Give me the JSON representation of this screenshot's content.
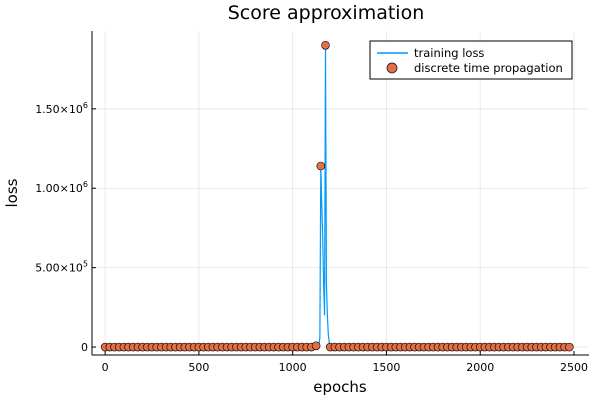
{
  "chart_data": {
    "type": "line",
    "title": "Score approximation",
    "xlabel": "epochs",
    "ylabel": "loss",
    "xlim": [
      -70,
      2580
    ],
    "ylim": [
      -50000,
      1990000
    ],
    "x_ticks": [
      0,
      500,
      1000,
      1500,
      2000,
      2500
    ],
    "x_tick_labels": [
      "0",
      "500",
      "1000",
      "1500",
      "2000",
      "2500"
    ],
    "y_ticks": [
      0,
      500000,
      1000000,
      1500000
    ],
    "y_tick_labels": [
      {
        "mantissa": "0",
        "exponent": ""
      },
      {
        "mantissa": "5.00×10",
        "exponent": "5"
      },
      {
        "mantissa": "1.00×10",
        "exponent": "6"
      },
      {
        "mantissa": "1.50×10",
        "exponent": "6"
      }
    ],
    "grid": true,
    "legend_position": "top-right",
    "series": [
      {
        "name": "training loss",
        "kind": "line",
        "color": "#009AFA",
        "x": [
          0,
          1125,
          1130,
          1135,
          1140,
          1145,
          1150,
          1155,
          1160,
          1165,
          1170,
          1175,
          1180,
          1185,
          1190,
          1195,
          1200,
          1210,
          2475
        ],
        "y": [
          0,
          0,
          1000,
          5000,
          15000,
          60000,
          1140000,
          900000,
          700000,
          400000,
          200000,
          1900000,
          400000,
          200000,
          80000,
          30000,
          0,
          0,
          0
        ]
      },
      {
        "name": "discrete time propagation",
        "kind": "scatter",
        "color": "#E26F46",
        "x": [
          0,
          25,
          50,
          75,
          100,
          125,
          150,
          175,
          200,
          225,
          250,
          275,
          300,
          325,
          350,
          375,
          400,
          425,
          450,
          475,
          500,
          525,
          550,
          575,
          600,
          625,
          650,
          675,
          700,
          725,
          750,
          775,
          800,
          825,
          850,
          875,
          900,
          925,
          950,
          975,
          1000,
          1025,
          1050,
          1075,
          1100,
          1125,
          1150,
          1175,
          1200,
          1225,
          1250,
          1275,
          1300,
          1325,
          1350,
          1375,
          1400,
          1425,
          1450,
          1475,
          1500,
          1525,
          1550,
          1575,
          1600,
          1625,
          1650,
          1675,
          1700,
          1725,
          1750,
          1775,
          1800,
          1825,
          1850,
          1875,
          1900,
          1925,
          1950,
          1975,
          2000,
          2025,
          2050,
          2075,
          2100,
          2125,
          2150,
          2175,
          2200,
          2225,
          2250,
          2275,
          2300,
          2325,
          2350,
          2375,
          2400,
          2425,
          2450,
          2475
        ],
        "y": [
          0,
          0,
          0,
          0,
          0,
          0,
          0,
          0,
          0,
          0,
          0,
          0,
          0,
          0,
          0,
          0,
          0,
          0,
          0,
          0,
          0,
          0,
          0,
          0,
          0,
          0,
          0,
          0,
          0,
          0,
          0,
          0,
          0,
          0,
          0,
          0,
          0,
          0,
          0,
          0,
          0,
          0,
          0,
          0,
          0,
          8000,
          1140000,
          1900000,
          0,
          0,
          0,
          0,
          0,
          0,
          0,
          0,
          0,
          0,
          0,
          0,
          0,
          0,
          0,
          0,
          0,
          0,
          0,
          0,
          0,
          0,
          0,
          0,
          0,
          0,
          0,
          0,
          0,
          0,
          0,
          0,
          0,
          0,
          0,
          0,
          0,
          0,
          0,
          0,
          0,
          0,
          0,
          0,
          0,
          0,
          0,
          0,
          0,
          0,
          0,
          0
        ]
      }
    ]
  }
}
